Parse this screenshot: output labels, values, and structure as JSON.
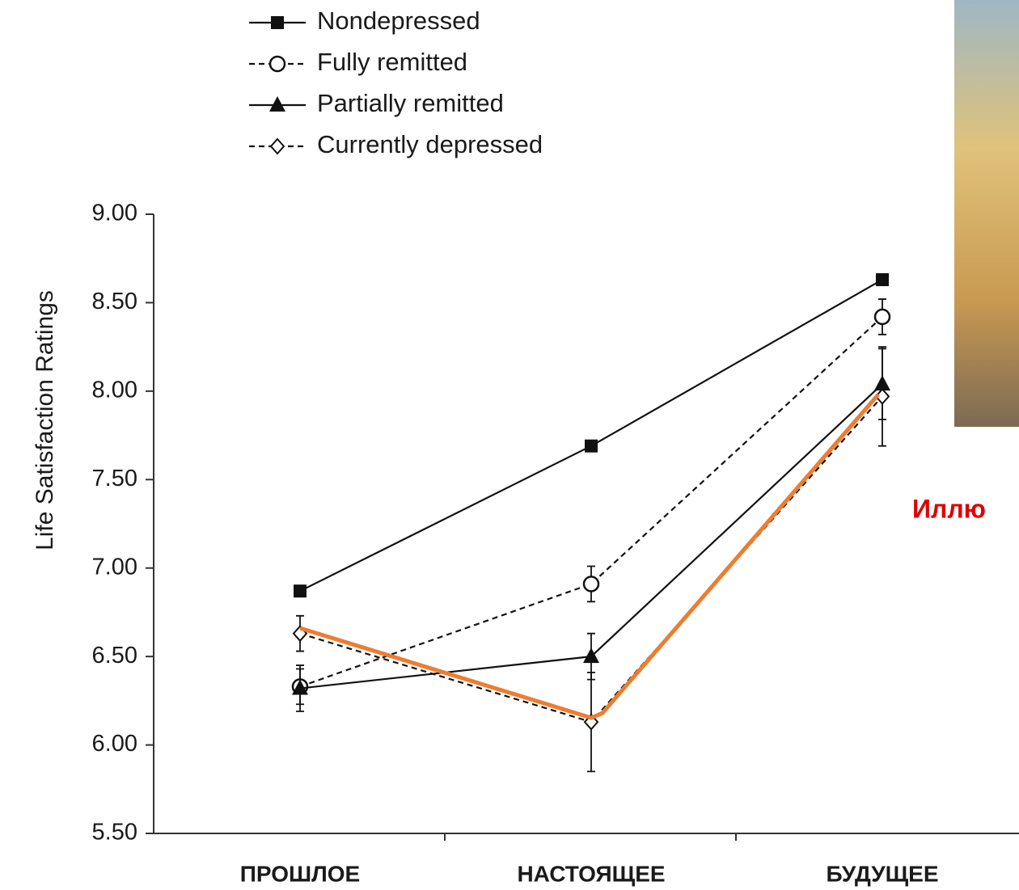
{
  "chart_data": {
    "type": "line",
    "y_label": "Life Satisfaction Ratings",
    "categories": [
      "ПРОШЛОЕ",
      "НАСТОЯЩЕЕ",
      "БУДУЩЕЕ"
    ],
    "series": [
      {
        "name": "Nondepressed",
        "color": "#111111",
        "marker": "square",
        "dashed": false,
        "values": [
          6.87,
          7.69,
          8.63
        ],
        "errors": [
          0.03,
          0.03,
          0.03
        ]
      },
      {
        "name": "Fully remitted",
        "color": "#111111",
        "marker": "circle",
        "dashed": true,
        "values": [
          6.33,
          6.91,
          8.42
        ],
        "errors": [
          0.1,
          0.1,
          0.1
        ]
      },
      {
        "name": "Partially remitted",
        "color": "#111111",
        "marker": "triangle",
        "dashed": false,
        "values": [
          6.32,
          6.5,
          8.04
        ],
        "errors": [
          0.13,
          0.13,
          0.2
        ]
      },
      {
        "name": "Currently depressed",
        "color": "#111111",
        "marker": "diamond",
        "dashed": true,
        "values": [
          6.63,
          6.13,
          7.97
        ],
        "errors": [
          0.1,
          0.28,
          0.28
        ]
      }
    ],
    "ylim": [
      5.5,
      9.0
    ],
    "yticks": [
      {
        "value": 5.5,
        "label": "5.50"
      },
      {
        "value": 6.0,
        "label": "6.00"
      },
      {
        "value": 6.5,
        "label": "6.50"
      },
      {
        "value": 7.0,
        "label": "7.00"
      },
      {
        "value": 7.5,
        "label": "7.50"
      },
      {
        "value": 8.0,
        "label": "8.00"
      },
      {
        "value": 8.5,
        "label": "8.50"
      },
      {
        "value": 9.0,
        "label": "9.00"
      }
    ],
    "side_caption": "Иллю"
  }
}
